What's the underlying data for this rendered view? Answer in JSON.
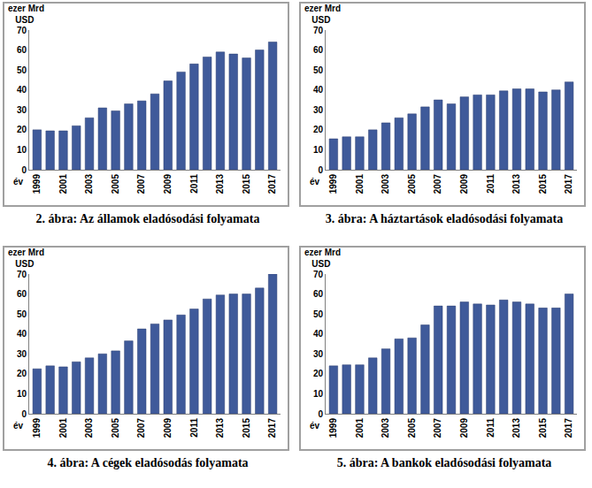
{
  "chart_data": [
    {
      "type": "bar",
      "title": "2. ábra: Az államok eladósodási folyamata",
      "y_label": "ezer Mrd USD",
      "x_label": "év",
      "categories": [
        "1999",
        null,
        "2001",
        null,
        "2003",
        null,
        "2005",
        null,
        "2007",
        null,
        "2009",
        null,
        "2011",
        null,
        "2013",
        null,
        "2015",
        null,
        "2017"
      ],
      "values": [
        20,
        19.5,
        19.5,
        22,
        26,
        31,
        29.5,
        33,
        34.5,
        38,
        44.5,
        49,
        53,
        56.5,
        59,
        58,
        56,
        60,
        64
      ],
      "color": "#3f5a9a",
      "ylim": [
        0,
        70
      ],
      "yticks": [
        0,
        10,
        20,
        30,
        40,
        50,
        60,
        70
      ],
      "grid": false
    },
    {
      "type": "bar",
      "title": "3. ábra: A háztartások eladósodási folyamata",
      "y_label": "ezer Mrd USD",
      "x_label": "év",
      "categories": [
        "1999",
        null,
        "2001",
        null,
        "2003",
        null,
        "2005",
        null,
        "2007",
        null,
        "2009",
        null,
        "2011",
        null,
        "2013",
        null,
        "2015",
        null,
        "2017"
      ],
      "values": [
        15.5,
        16.5,
        16.5,
        20,
        23.5,
        26,
        28,
        31.5,
        35,
        33,
        36.5,
        37.5,
        37.5,
        39.5,
        40.5,
        40.5,
        39,
        40,
        44
      ],
      "color": "#3f5a9a",
      "ylim": [
        0,
        70
      ],
      "yticks": [
        0,
        10,
        20,
        30,
        40,
        50,
        60,
        70
      ],
      "grid": false
    },
    {
      "type": "bar",
      "title": "4. ábra: A cégek eladósodás folyamata",
      "y_label": "ezer Mrd USD",
      "x_label": "év",
      "categories": [
        "1999",
        null,
        "2001",
        null,
        "2003",
        null,
        "2005",
        null,
        "2007",
        null,
        "2009",
        null,
        "2011",
        null,
        "2013",
        null,
        "2015",
        null,
        "2017"
      ],
      "values": [
        22.5,
        24,
        23.5,
        26,
        28,
        30,
        31.5,
        36.5,
        42.5,
        45,
        47,
        49.5,
        52.5,
        57.5,
        59.5,
        60,
        60,
        63,
        70
      ],
      "color": "#3f5a9a",
      "ylim": [
        0,
        70
      ],
      "yticks": [
        0,
        10,
        20,
        30,
        40,
        50,
        60,
        70
      ],
      "grid": false
    },
    {
      "type": "bar",
      "title": "5. ábra: A bankok eladósodási folyamata",
      "y_label": "ezer Mrd USD",
      "x_label": "év",
      "categories": [
        "1999",
        null,
        "2001",
        null,
        "2003",
        null,
        "2005",
        null,
        "2007",
        null,
        "2009",
        null,
        "2011",
        null,
        "2013",
        null,
        "2015",
        null,
        "2017"
      ],
      "values": [
        24,
        24.5,
        24.5,
        28,
        32.5,
        37.5,
        38,
        44.5,
        54,
        54,
        56,
        55,
        54.5,
        57,
        56,
        55,
        53,
        53,
        60
      ],
      "color": "#3f5a9a",
      "ylim": [
        0,
        70
      ],
      "yticks": [
        0,
        10,
        20,
        30,
        40,
        50,
        60,
        70
      ],
      "grid": false
    }
  ]
}
